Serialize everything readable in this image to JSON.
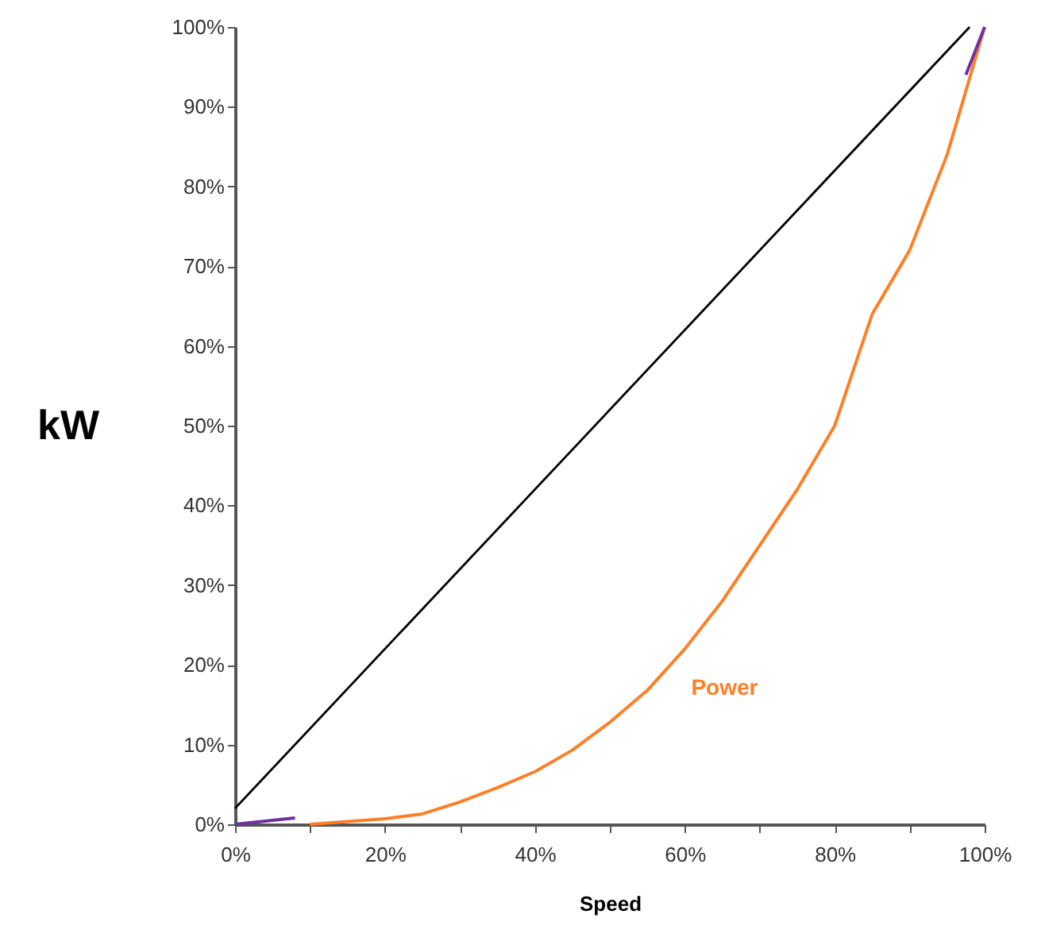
{
  "chart_data": {
    "type": "line",
    "xlabel": "Speed",
    "ylabel": "kW",
    "series": [
      {
        "color": "#000000",
        "x": [
          0,
          98
        ],
        "values": [
          2,
          100
        ]
      },
      {
        "name": "Power",
        "color": "#ff7f27",
        "x": [
          10,
          20,
          25,
          30,
          35,
          40,
          45,
          50,
          55,
          60,
          65,
          70,
          75,
          80,
          85,
          90,
          95,
          100
        ],
        "values": [
          0,
          0.7,
          1.3,
          2.8,
          4.6,
          6.6,
          9.3,
          12.8,
          16.8,
          22,
          28,
          35,
          42,
          50,
          64,
          72,
          84,
          100
        ]
      },
      {
        "color": "#7030a0",
        "x": [
          0,
          8
        ],
        "values": [
          0,
          0.8
        ]
      },
      {
        "color": "#7030a0",
        "x": [
          97.5,
          100
        ],
        "values": [
          94,
          100
        ]
      }
    ],
    "xlim": [
      0,
      100
    ],
    "ylim": [
      0,
      100
    ],
    "xticks": [
      {
        "value": 0,
        "label": "0%"
      },
      {
        "value": 10,
        "label": null
      },
      {
        "value": 20,
        "label": "20%"
      },
      {
        "value": 30,
        "label": null
      },
      {
        "value": 40,
        "label": "40%"
      },
      {
        "value": 50,
        "label": null
      },
      {
        "value": 60,
        "label": "60%"
      },
      {
        "value": 70,
        "label": null
      },
      {
        "value": 80,
        "label": "80%"
      },
      {
        "value": 90,
        "label": null
      },
      {
        "value": 100,
        "label": "100%"
      }
    ],
    "yticks": [
      {
        "value": 0,
        "label": "0%"
      },
      {
        "value": 10,
        "label": "10%"
      },
      {
        "value": 20,
        "label": "20%"
      },
      {
        "value": 30,
        "label": "30%"
      },
      {
        "value": 40,
        "label": "40%"
      },
      {
        "value": 50,
        "label": "50%"
      },
      {
        "value": 60,
        "label": "60%"
      },
      {
        "value": 70,
        "label": "70%"
      },
      {
        "value": 80,
        "label": "80%"
      },
      {
        "value": 90,
        "label": "90%"
      },
      {
        "value": 100,
        "label": "100%"
      }
    ],
    "grid": false,
    "marker": "none",
    "line_style": "solid"
  }
}
